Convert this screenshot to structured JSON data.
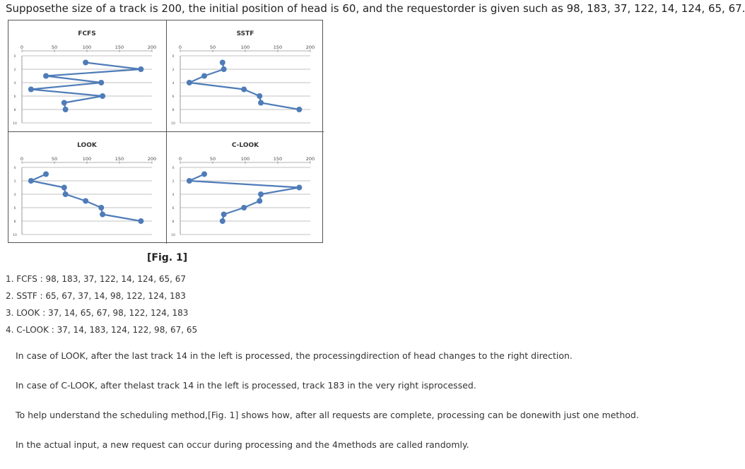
{
  "intro_text": "Supposethe size of a track is 200, the initial position of head is 60, and the requestorder is given such as 98, 183, 37, 122, 14, 124, 65, 67.",
  "figure_caption": "[Fig. 1]",
  "colors": {
    "line": "#4f7cb8",
    "grid": "#c0c0c0",
    "border": "#555555"
  },
  "chart_data": [
    {
      "type": "line",
      "title": "FCFS",
      "x": [
        98,
        183,
        37,
        122,
        14,
        124,
        65,
        67
      ],
      "y": [
        1,
        2,
        3,
        4,
        5,
        6,
        7,
        8
      ],
      "xlim": [
        0,
        200
      ],
      "ylim": [
        0,
        10
      ],
      "x_ticks": [
        "0",
        "50",
        "100",
        "150",
        "200"
      ],
      "y_ticks": [
        "0",
        "2",
        "4",
        "6",
        "8",
        "10"
      ],
      "y_axis": "reversed",
      "grid": true,
      "x_axis_position": "top"
    },
    {
      "type": "line",
      "title": "SSTF",
      "x": [
        65,
        67,
        37,
        14,
        98,
        122,
        124,
        183
      ],
      "y": [
        1,
        2,
        3,
        4,
        5,
        6,
        7,
        8
      ],
      "xlim": [
        0,
        200
      ],
      "ylim": [
        0,
        10
      ],
      "x_ticks": [
        "0",
        "50",
        "100",
        "150",
        "200"
      ],
      "y_ticks": [
        "0",
        "2",
        "4",
        "6",
        "8",
        "10"
      ],
      "y_axis": "reversed",
      "grid": true,
      "x_axis_position": "top"
    },
    {
      "type": "line",
      "title": "LOOK",
      "x": [
        37,
        14,
        65,
        67,
        98,
        122,
        124,
        183
      ],
      "y": [
        1,
        2,
        3,
        4,
        5,
        6,
        7,
        8
      ],
      "xlim": [
        0,
        200
      ],
      "ylim": [
        0,
        10
      ],
      "x_ticks": [
        "0",
        "50",
        "100",
        "150",
        "200"
      ],
      "y_ticks": [
        "0",
        "2",
        "4",
        "6",
        "8",
        "10"
      ],
      "y_axis": "reversed",
      "grid": true,
      "x_axis_position": "top"
    },
    {
      "type": "line",
      "title": "C-LOOK",
      "x": [
        37,
        14,
        183,
        124,
        122,
        98,
        67,
        65
      ],
      "y": [
        1,
        2,
        3,
        4,
        5,
        6,
        7,
        8
      ],
      "xlim": [
        0,
        200
      ],
      "ylim": [
        0,
        10
      ],
      "x_ticks": [
        "0",
        "50",
        "100",
        "150",
        "200"
      ],
      "y_ticks": [
        "0",
        "2",
        "4",
        "6",
        "8",
        "10"
      ],
      "y_axis": "reversed",
      "grid": true,
      "x_axis_position": "top"
    }
  ],
  "list_items": [
    "1. FCFS : 98, 183, 37, 122, 14, 124, 65, 67",
    "2. SSTF : 65, 67, 37, 14, 98, 122, 124, 183",
    "3. LOOK : 37, 14, 65, 67, 98, 122, 124, 183",
    "4. C-LOOK : 37, 14, 183, 124, 122, 98, 67, 65"
  ],
  "paragraphs": [
    "In case of LOOK, after the last track 14 in the left is processed, the processingdirection of head changes to the right direction.",
    "In case of C-LOOK, after thelast track 14 in the left is processed, track 183 in the very right isprocessed.",
    "To help understand the scheduling method,[Fig. 1] shows how, after all requests are complete, processing can be donewith just one method.",
    "In the actual input, a new request can occur during processing and the 4methods are called randomly."
  ]
}
